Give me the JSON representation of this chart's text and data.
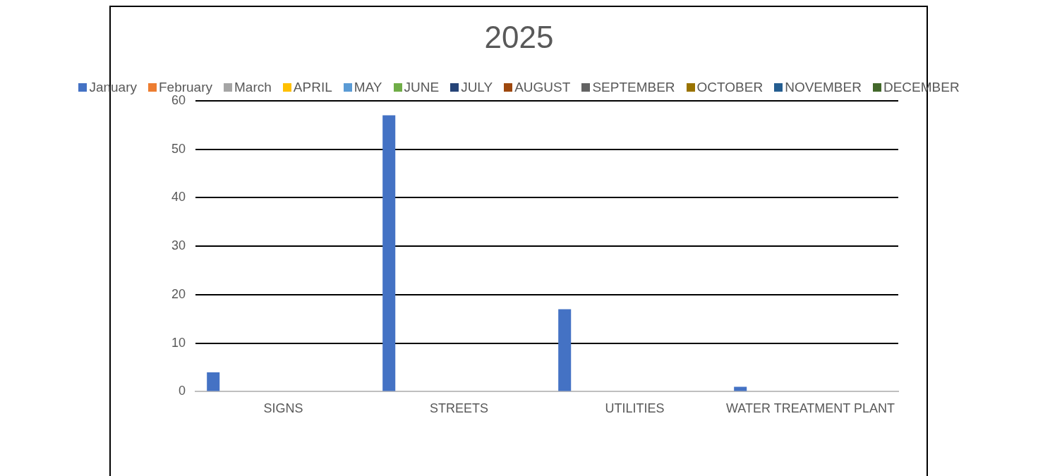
{
  "chart_data": {
    "type": "bar",
    "title": "2025",
    "categories": [
      "SIGNS",
      "STREETS",
      "UTILITIES",
      "WATER TREATMENT PLANT"
    ],
    "series": [
      {
        "name": "January",
        "color": "#4472c4",
        "values": [
          4,
          57,
          17,
          1
        ]
      },
      {
        "name": "February",
        "color": "#ed7d31",
        "values": [
          0,
          0,
          0,
          0
        ]
      },
      {
        "name": "March",
        "color": "#a5a5a5",
        "values": [
          0,
          0,
          0,
          0
        ]
      },
      {
        "name": "APRIL",
        "color": "#ffc000",
        "values": [
          0,
          0,
          0,
          0
        ]
      },
      {
        "name": "MAY",
        "color": "#5b9bd5",
        "values": [
          0,
          0,
          0,
          0
        ]
      },
      {
        "name": "JUNE",
        "color": "#70ad47",
        "values": [
          0,
          0,
          0,
          0
        ]
      },
      {
        "name": "JULY",
        "color": "#264478",
        "values": [
          0,
          0,
          0,
          0
        ]
      },
      {
        "name": "AUGUST",
        "color": "#9e480e",
        "values": [
          0,
          0,
          0,
          0
        ]
      },
      {
        "name": "SEPTEMBER",
        "color": "#636363",
        "values": [
          0,
          0,
          0,
          0
        ]
      },
      {
        "name": "OCTOBER",
        "color": "#997300",
        "values": [
          0,
          0,
          0,
          0
        ]
      },
      {
        "name": "NOVEMBER",
        "color": "#255e91",
        "values": [
          0,
          0,
          0,
          0
        ]
      },
      {
        "name": "DECEMBER",
        "color": "#43682b",
        "values": [
          0,
          0,
          0,
          0
        ]
      }
    ],
    "ylim": [
      0,
      60
    ],
    "yticks": [
      0,
      10,
      20,
      30,
      40,
      50,
      60
    ],
    "grid": "y",
    "legend": "top"
  }
}
